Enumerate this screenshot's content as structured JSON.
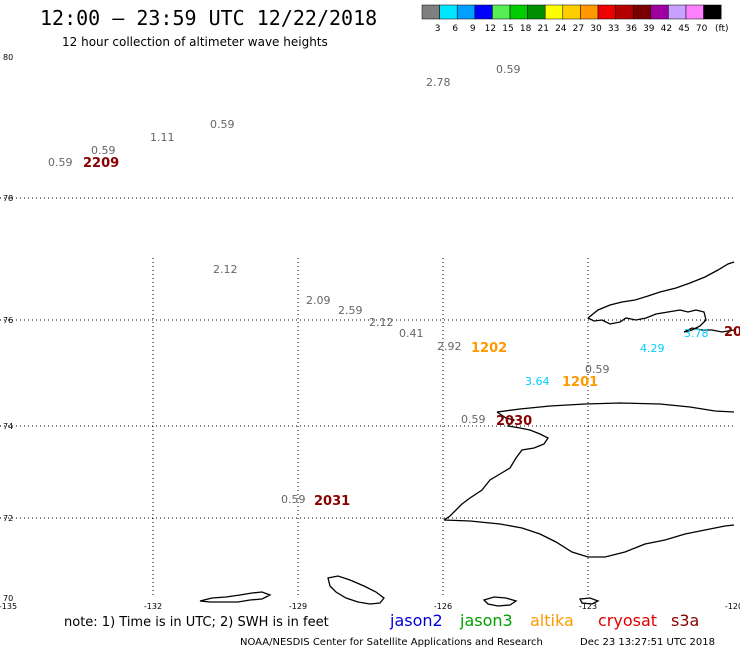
{
  "header": {
    "title": "12:00 — 23:59 UTC 12/22/2018",
    "subtitle": "12 hour collection of altimeter wave heights"
  },
  "scale": {
    "unit": "(ft)",
    "bins": [
      {
        "label": "3",
        "color": "#7f7f7f"
      },
      {
        "label": "6",
        "color": "#00e5ff"
      },
      {
        "label": "9",
        "color": "#00a0ff"
      },
      {
        "label": "12",
        "color": "#0000ff"
      },
      {
        "label": "15",
        "color": "#55ee55"
      },
      {
        "label": "18",
        "color": "#00cc00"
      },
      {
        "label": "21",
        "color": "#008f00"
      },
      {
        "label": "24",
        "color": "#ffff00"
      },
      {
        "label": "27",
        "color": "#ffcc00"
      },
      {
        "label": "30",
        "color": "#ff9900"
      },
      {
        "label": "33",
        "color": "#ee0000"
      },
      {
        "label": "36",
        "color": "#b40000"
      },
      {
        "label": "39",
        "color": "#7a0000"
      },
      {
        "label": "42",
        "color": "#a000a0"
      },
      {
        "label": "45",
        "color": "#c8a0ff"
      },
      {
        "label": "70",
        "color": "#ff80ff"
      },
      {
        "label": "",
        "color": "#000000"
      }
    ]
  },
  "lat_labels": [
    "80",
    "78",
    "76",
    "74",
    "72",
    "70"
  ],
  "lon_labels": [
    "-135",
    "-132",
    "-129",
    "-126",
    "-123",
    "-120"
  ],
  "observations": [
    {
      "text": "0.59",
      "kind": "swh-gray"
    },
    {
      "text": "2.78",
      "kind": "swh-gray"
    },
    {
      "text": "0.59",
      "kind": "swh-gray"
    },
    {
      "text": "1.11",
      "kind": "swh-gray"
    },
    {
      "text": "0.59",
      "kind": "swh-gray"
    },
    {
      "text": "0.59",
      "kind": "swh-gray"
    },
    {
      "text": "2209",
      "kind": "time-cryosat"
    },
    {
      "text": "2.12",
      "kind": "swh-gray"
    },
    {
      "text": "2.09",
      "kind": "swh-gray"
    },
    {
      "text": "2.59",
      "kind": "swh-gray"
    },
    {
      "text": "2.12",
      "kind": "swh-gray"
    },
    {
      "text": "0.41",
      "kind": "swh-gray"
    },
    {
      "text": "2.92",
      "kind": "swh-gray"
    },
    {
      "text": "1202",
      "kind": "time-altika"
    },
    {
      "text": "0.59",
      "kind": "swh-gray"
    },
    {
      "text": "3.64",
      "kind": "swh-cyan"
    },
    {
      "text": "1201",
      "kind": "time-altika"
    },
    {
      "text": "4.29",
      "kind": "swh-cyan"
    },
    {
      "text": "3.78",
      "kind": "swh-cyan"
    },
    {
      "text": "20",
      "kind": "time-cryosat"
    },
    {
      "text": "0.59",
      "kind": "swh-gray"
    },
    {
      "text": "2030",
      "kind": "time-cryosat"
    },
    {
      "text": "0.59",
      "kind": "swh-gray"
    },
    {
      "text": "2031",
      "kind": "time-cryosat"
    }
  ],
  "footer": {
    "note": "note: 1) Time is in UTC; 2) SWH is in feet",
    "satellites": [
      {
        "name": "jason2",
        "color": "#0000dd"
      },
      {
        "name": "jason3",
        "color": "#00a000"
      },
      {
        "name": "altika",
        "color": "#ff9900"
      },
      {
        "name": "cryosat",
        "color": "#dd0000"
      },
      {
        "name": "s3a",
        "color": "#880000"
      }
    ],
    "credit": "NOAA/NESDIS Center for Satellite Applications and Research",
    "timestamp": "Dec 23 13:27:51 UTC 2018"
  },
  "colors": {
    "swh-gray": "#666666",
    "swh-cyan": "#00ccff",
    "time-altika": "#ff9900",
    "time-cryosat": "#880000"
  }
}
